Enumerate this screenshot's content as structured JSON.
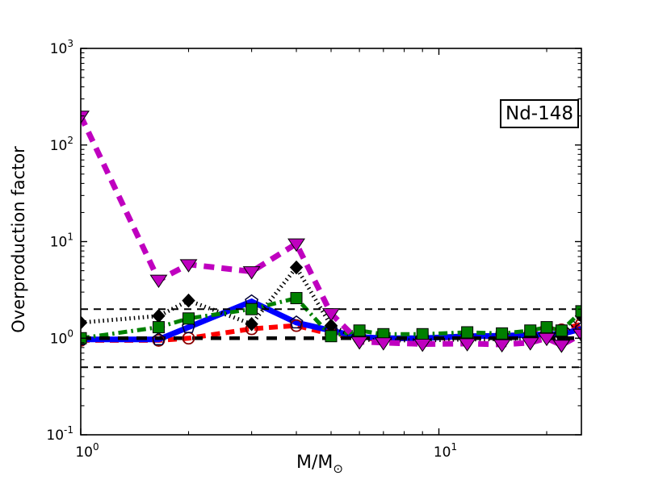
{
  "chart_data": {
    "type": "line",
    "title": "",
    "annotation": {
      "text": "Nd-148"
    },
    "xlabel": {
      "base": "M/M",
      "sub": "⊙"
    },
    "ylabel": "Overproduction factor",
    "xscale": "log",
    "yscale": "log",
    "xlim": [
      1,
      25
    ],
    "ylim": [
      0.1,
      1000
    ],
    "grid": false,
    "background": "#ffffff",
    "frame_color": "#000000",
    "x_major_ticks": [
      {
        "value": 1,
        "base": "10",
        "exp": "0"
      },
      {
        "value": 10,
        "base": "10",
        "exp": "1"
      }
    ],
    "x_minor_ticks": [
      2,
      3,
      4,
      5,
      6,
      7,
      8,
      9,
      20
    ],
    "y_major_ticks": [
      {
        "value": 1000,
        "base": "10",
        "exp": "3"
      },
      {
        "value": 100,
        "base": "10",
        "exp": "2"
      },
      {
        "value": 10,
        "base": "10",
        "exp": "1"
      },
      {
        "value": 1,
        "base": "10",
        "exp": "0"
      },
      {
        "value": 0.1,
        "base": "10",
        "exp": "-1"
      }
    ],
    "y_minor_ticks": [
      0.2,
      0.3,
      0.4,
      0.5,
      0.6,
      0.7,
      0.8,
      0.9,
      2,
      3,
      4,
      5,
      6,
      7,
      8,
      9,
      20,
      30,
      40,
      50,
      60,
      70,
      80,
      90,
      200,
      300,
      400,
      500,
      600,
      700,
      800,
      900
    ],
    "x": [
      1,
      1.65,
      2,
      3,
      4,
      5,
      6,
      7,
      9,
      12,
      15,
      18,
      20,
      22,
      25
    ],
    "series": [
      {
        "name": "red-thick-dashed-circles",
        "color": "#ff0000",
        "linestyle": "dashed",
        "linewidth": 6,
        "dash": "11 7",
        "marker": "circle-open",
        "marker_edge": "#8b0000",
        "values": [
          0.95,
          0.95,
          1.0,
          1.25,
          1.35,
          1.1,
          1.0,
          0.98,
          1.0,
          1.02,
          1.05,
          1.15,
          1.28,
          1.22,
          1.4
        ]
      },
      {
        "name": "blue-thick-solid-pentagons",
        "color": "#0000ff",
        "linestyle": "solid",
        "linewidth": 7,
        "dash": "",
        "marker": "pentagon-open",
        "marker_edge": "#000033",
        "values": [
          0.97,
          0.97,
          1.3,
          2.4,
          1.45,
          1.2,
          1.03,
          1.0,
          1.0,
          1.05,
          1.06,
          1.08,
          1.1,
          1.1,
          1.25
        ]
      },
      {
        "name": "black-dotted-diamonds",
        "color": "#000000",
        "linestyle": "dotted",
        "linewidth": 5,
        "dash": "1.5 4",
        "marker": "diamond",
        "marker_edge": "#000000",
        "values": [
          1.45,
          1.7,
          2.45,
          1.4,
          5.4,
          1.35,
          0.97,
          0.95,
          0.95,
          0.97,
          0.98,
          1.0,
          1.15,
          1.05,
          1.7
        ]
      },
      {
        "name": "green-dashdot-squares",
        "color": "#008000",
        "linestyle": "dashdot",
        "linewidth": 5,
        "dash": "11 5 2.5 5",
        "marker": "square",
        "marker_edge": "#000000",
        "values": [
          1.0,
          1.3,
          1.6,
          2.0,
          2.6,
          1.05,
          1.2,
          1.1,
          1.1,
          1.15,
          1.12,
          1.2,
          1.3,
          1.2,
          1.9
        ]
      },
      {
        "name": "magenta-thick-dashed-triangles",
        "color": "#bf00bf",
        "linestyle": "dashed",
        "linewidth": 7,
        "dash": "13 9",
        "marker": "triangle-down",
        "marker_edge": "#000000",
        "values": [
          200,
          4.0,
          5.8,
          4.9,
          9.5,
          1.8,
          0.92,
          0.9,
          0.87,
          0.88,
          0.86,
          0.9,
          1.0,
          0.85,
          1.1
        ]
      }
    ],
    "hlines": [
      {
        "y": 2,
        "color": "#000000",
        "linewidth": 2,
        "dash": "9 7"
      },
      {
        "y": 1,
        "color": "#000000",
        "linewidth": 4.5,
        "dash": "13 10"
      },
      {
        "y": 0.5,
        "color": "#000000",
        "linewidth": 2,
        "dash": "9 7"
      }
    ]
  }
}
